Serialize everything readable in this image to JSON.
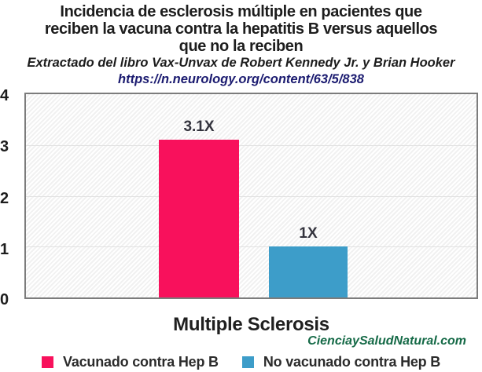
{
  "title": {
    "lines": [
      "Incidencia de esclerosis múltiple en pacientes que",
      "reciben la vacuna contra la hepatitis B versus aquellos",
      "que no la reciben"
    ]
  },
  "subtitle": "Extractado del libro Vax-Unvax de Robert Kennedy Jr. y Brian Hooker",
  "source_url": "https://n.neurology.org/content/63/5/838",
  "watermark": "CienciaySaludNatural.com",
  "colors": {
    "vaccinated_bar": "#f8115c",
    "unvaccinated_bar": "#3d9dc9",
    "url_text": "#1b1b70",
    "watermark_text": "#156a47",
    "plot_border": "#7c7c7c"
  },
  "chart_data": {
    "type": "bar",
    "categories": [
      "Multiple Sclerosis"
    ],
    "series": [
      {
        "name": "Vacunado contra Hep B",
        "values": [
          3.1
        ],
        "label": "3.1X",
        "color": "#f8115c"
      },
      {
        "name": "No vacunado contra Hep B",
        "values": [
          1
        ],
        "label": "1X",
        "color": "#3d9dc9"
      }
    ],
    "xlabel": "Multiple Sclerosis",
    "ylabel": "",
    "ylim": [
      0,
      4
    ],
    "yticks": [
      "4",
      "3",
      "2",
      "1",
      "0"
    ],
    "grid": true,
    "legend_position": "bottom"
  },
  "legend": {
    "items": [
      {
        "label": "Vacunado contra Hep B"
      },
      {
        "label": "No vacunado contra Hep B"
      }
    ]
  }
}
